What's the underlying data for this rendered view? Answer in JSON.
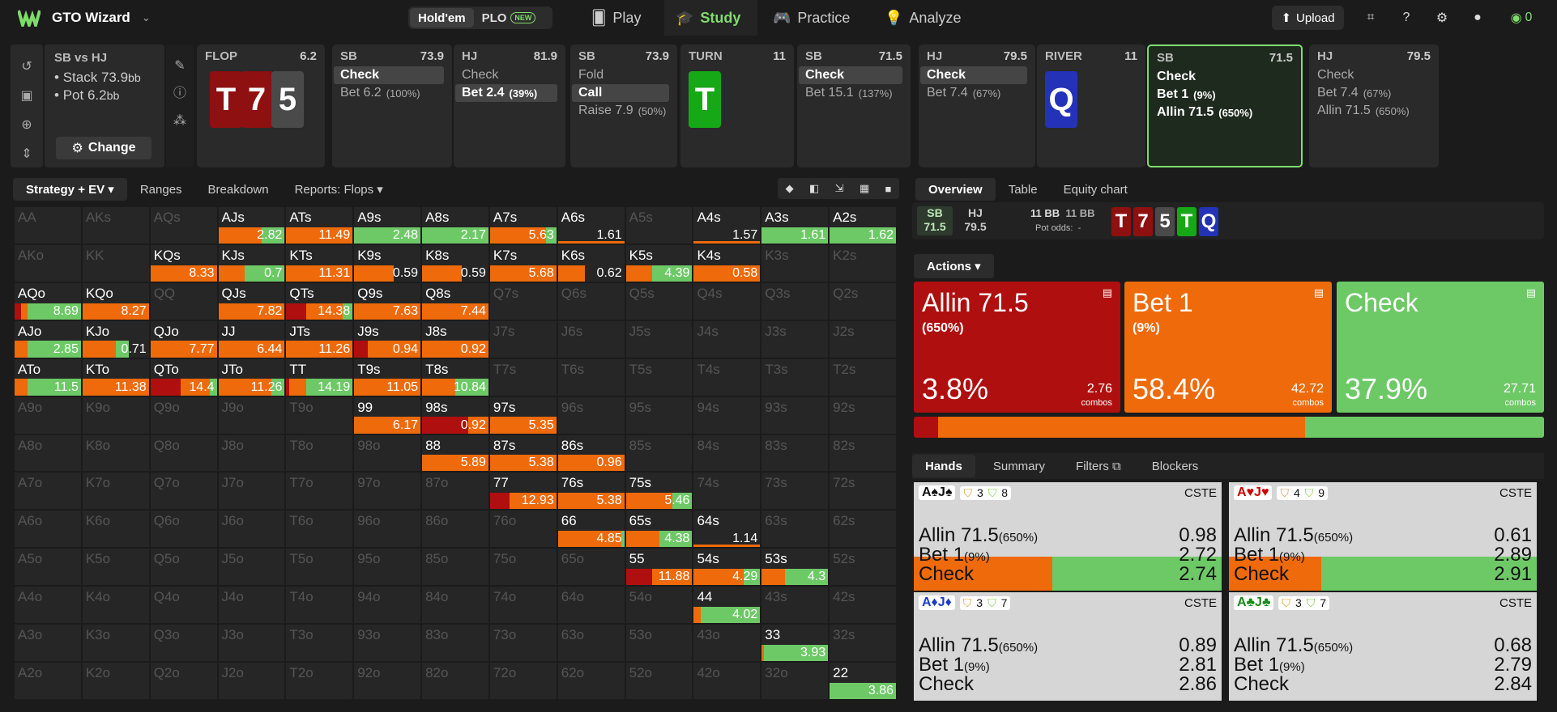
{
  "app": {
    "name": "GTO Wizard",
    "game_tabs": [
      "Hold'em",
      "PLO"
    ],
    "new_badge": "NEW",
    "nav": [
      "Play",
      "Study",
      "Practice",
      "Analyze"
    ],
    "upload": "Upload",
    "balance": "0"
  },
  "spot": {
    "title": "SB vs HJ",
    "stack_label": "Stack",
    "stack": "73.9",
    "pot_label": "Pot",
    "pot": "6.2",
    "unit": "bb",
    "change": "Change"
  },
  "tree": [
    {
      "h": "FLOP",
      "v": "6.2",
      "cards": [
        "T",
        "7",
        "5"
      ]
    },
    {
      "h": "SB",
      "v": "73.9",
      "acts": [
        [
          "Check",
          "",
          1
        ],
        [
          "Bet 6.2",
          "(100%)",
          0
        ]
      ]
    },
    {
      "h": "HJ",
      "v": "81.9",
      "acts": [
        [
          "Check",
          "",
          0
        ],
        [
          "Bet 2.4",
          "(39%)",
          1
        ]
      ]
    },
    {
      "h": "SB",
      "v": "73.9",
      "acts": [
        [
          "Fold",
          "",
          0
        ],
        [
          "Call",
          "",
          1
        ],
        [
          "Raise 7.9",
          "(50%)",
          0
        ]
      ]
    },
    {
      "h": "TURN",
      "v": "11",
      "cards": [
        "T"
      ]
    },
    {
      "h": "SB",
      "v": "71.5",
      "acts": [
        [
          "Check",
          "",
          1
        ],
        [
          "Bet 15.1",
          "(137%)",
          0
        ]
      ]
    },
    {
      "h": "HJ",
      "v": "79.5",
      "acts": [
        [
          "Check",
          "",
          1
        ],
        [
          "Bet 7.4",
          "(67%)",
          0
        ]
      ]
    },
    {
      "h": "RIVER",
      "v": "11",
      "cards": [
        "Q"
      ]
    },
    {
      "h": "SB",
      "v": "71.5",
      "acts": [
        [
          "Check",
          "",
          0
        ],
        [
          "Bet 1",
          "(9%)",
          0
        ],
        [
          "Allin 71.5",
          "(650%)",
          0
        ]
      ]
    },
    {
      "h": "HJ",
      "v": "79.5",
      "acts": [
        [
          "Check",
          "",
          0
        ],
        [
          "Bet 7.4",
          "(67%)",
          0
        ],
        [
          "Allin 71.5",
          "(650%)",
          0
        ]
      ]
    }
  ],
  "left_tabs": [
    "Strategy + EV",
    "Ranges",
    "Breakdown",
    "Reports: Flops"
  ],
  "right_tabs": [
    "Overview",
    "Table",
    "Equity chart"
  ],
  "players": {
    "sb": "SB",
    "sb_v": "71.5",
    "hj": "HJ",
    "hj_v": "79.5",
    "bb1": "11 BB",
    "bb2": "11 BB",
    "odds": "Pot odds:",
    "odds_v": "-"
  },
  "board": [
    "T",
    "7",
    "5",
    "T",
    "Q"
  ],
  "actions_label": "Actions",
  "actions": [
    {
      "name": "Allin 71.5",
      "sub": "(650%)",
      "pct": "3.8%",
      "combos": "2.76",
      "combos_label": "combos",
      "color": "#b00f0f"
    },
    {
      "name": "Bet 1",
      "sub": "(9%)",
      "pct": "58.4%",
      "combos": "42.72",
      "combos_label": "combos",
      "color": "#ee6a0a"
    },
    {
      "name": "Check",
      "sub": "",
      "pct": "37.9%",
      "combos": "27.71",
      "combos_label": "combos",
      "color": "#6dc966"
    }
  ],
  "freq": [
    3.8,
    58.4,
    37.9
  ],
  "hands_tabs": [
    "Hands",
    "Summary",
    "Filters",
    "Blockers"
  ],
  "hands": [
    {
      "card": "A♠J♠",
      "b1": "3",
      "b2": "8",
      "cste": "CSTE",
      "rows": [
        [
          "Allin 71.5",
          "(650%)",
          "0.98"
        ],
        [
          "Bet 1",
          "(9%)",
          "2.72"
        ],
        [
          "Check",
          "",
          "2.74"
        ]
      ],
      "fill": [
        0,
        45,
        55
      ]
    },
    {
      "card": "A♥J♥",
      "b1": "4",
      "b2": "9",
      "cste": "CSTE",
      "rows": [
        [
          "Allin 71.5",
          "(650%)",
          "0.61"
        ],
        [
          "Bet 1",
          "(9%)",
          "2.89"
        ],
        [
          "Check",
          "",
          "2.91"
        ]
      ],
      "fill": [
        0,
        30,
        70
      ]
    },
    {
      "card": "A♦J♦",
      "b1": "3",
      "b2": "7",
      "cste": "CSTE",
      "rows": [
        [
          "Allin 71.5",
          "(650%)",
          "0.89"
        ],
        [
          "Bet 1",
          "(9%)",
          "2.81"
        ],
        [
          "Check",
          "",
          "2.86"
        ]
      ],
      "fill": [
        0,
        0,
        0
      ]
    },
    {
      "card": "A♣J♣",
      "b1": "3",
      "b2": "7",
      "cste": "CSTE",
      "rows": [
        [
          "Allin 71.5",
          "(650%)",
          "0.68"
        ],
        [
          "Bet 1",
          "(9%)",
          "2.79"
        ],
        [
          "Check",
          "",
          "2.84"
        ]
      ],
      "fill": [
        0,
        0,
        0
      ]
    }
  ],
  "matrix": [
    [
      "AA",
      "",
      "",
      "",
      ""
    ],
    [
      "AKs",
      "",
      "",
      "",
      ""
    ],
    [
      "AQs",
      "",
      "",
      "",
      ""
    ],
    [
      "AJs",
      "2.82",
      "0",
      "65",
      "35"
    ],
    [
      "ATs",
      "11.49",
      "0",
      "100",
      "0"
    ],
    [
      "A9s",
      "2.48",
      "0",
      "0",
      "100"
    ],
    [
      "A8s",
      "2.17",
      "0",
      "0",
      "100"
    ],
    [
      "A7s",
      "5.63",
      "0",
      "85",
      "15"
    ],
    [
      "A6s",
      "1.61",
      "0",
      "0",
      "0"
    ],
    [
      "A5s",
      "",
      "",
      "",
      ""
    ],
    [
      "A4s",
      "1.57",
      "0",
      "0",
      "0"
    ],
    [
      "A3s",
      "1.61",
      "0",
      "0",
      "100"
    ],
    [
      "A2s",
      "1.62",
      "0",
      "0",
      "100"
    ],
    [
      "AKo",
      "",
      "",
      "",
      ""
    ],
    [
      "KK",
      "",
      "",
      "",
      ""
    ],
    [
      "KQs",
      "8.33",
      "0",
      "100",
      "0"
    ],
    [
      "KJs",
      "0.7",
      "0",
      "40",
      "60"
    ],
    [
      "KTs",
      "11.31",
      "0",
      "100",
      "0"
    ],
    [
      "K9s",
      "0.59",
      "0",
      "60",
      "0"
    ],
    [
      "K8s",
      "0.59",
      "0",
      "60",
      "0"
    ],
    [
      "K7s",
      "5.68",
      "0",
      "100",
      "0"
    ],
    [
      "K6s",
      "0.62",
      "0",
      "40",
      "0"
    ],
    [
      "K5s",
      "4.39",
      "0",
      "40",
      "60"
    ],
    [
      "K4s",
      "0.58",
      "0",
      "100",
      "0"
    ],
    [
      "K3s",
      "",
      "",
      "",
      ""
    ],
    [
      "K2s",
      "",
      "",
      "",
      ""
    ],
    [
      "AQo",
      "8.69",
      "10",
      "10",
      "80"
    ],
    [
      "KQo",
      "8.27",
      "0",
      "100",
      "0"
    ],
    [
      "QQ",
      "",
      "",
      "",
      ""
    ],
    [
      "QJs",
      "7.82",
      "0",
      "100",
      "0"
    ],
    [
      "QTs",
      "14.38",
      "30",
      "55",
      "15"
    ],
    [
      "Q9s",
      "7.63",
      "0",
      "100",
      "0"
    ],
    [
      "Q8s",
      "7.44",
      "0",
      "100",
      "0"
    ],
    [
      "Q7s",
      "",
      "",
      "",
      ""
    ],
    [
      "Q6s",
      "",
      "",
      "",
      ""
    ],
    [
      "Q5s",
      "",
      "",
      "",
      ""
    ],
    [
      "Q4s",
      "",
      "",
      "",
      ""
    ],
    [
      "Q3s",
      "",
      "",
      "",
      ""
    ],
    [
      "Q2s",
      "",
      "",
      "",
      ""
    ],
    [
      "AJo",
      "2.85",
      "0",
      "20",
      "80"
    ],
    [
      "KJo",
      "0.71",
      "0",
      "50",
      "20"
    ],
    [
      "QJo",
      "7.77",
      "0",
      "100",
      "0"
    ],
    [
      "JJ",
      "6.44",
      "0",
      "100",
      "0"
    ],
    [
      "JTs",
      "11.26",
      "0",
      "100",
      "0"
    ],
    [
      "J9s",
      "0.94",
      "20",
      "80",
      "0"
    ],
    [
      "J8s",
      "0.92",
      "0",
      "100",
      "0"
    ],
    [
      "J7s",
      "",
      "",
      "",
      ""
    ],
    [
      "J6s",
      "",
      "",
      "",
      ""
    ],
    [
      "J5s",
      "",
      "",
      "",
      ""
    ],
    [
      "J4s",
      "",
      "",
      "",
      ""
    ],
    [
      "J3s",
      "",
      "",
      "",
      ""
    ],
    [
      "J2s",
      "",
      "",
      "",
      ""
    ],
    [
      "ATo",
      "11.5",
      "0",
      "20",
      "80"
    ],
    [
      "KTo",
      "11.38",
      "0",
      "100",
      "0"
    ],
    [
      "QTo",
      "14.4",
      "45",
      "45",
      "10"
    ],
    [
      "JTo",
      "11.26",
      "0",
      "80",
      "20"
    ],
    [
      "TT",
      "14.19",
      "5",
      "25",
      "70"
    ],
    [
      "T9s",
      "11.05",
      "0",
      "100",
      "0"
    ],
    [
      "T8s",
      "10.84",
      "0",
      "50",
      "50"
    ],
    [
      "T7s",
      "",
      "",
      "",
      ""
    ],
    [
      "T6s",
      "",
      "",
      "",
      ""
    ],
    [
      "T5s",
      "",
      "",
      "",
      ""
    ],
    [
      "T4s",
      "",
      "",
      "",
      ""
    ],
    [
      "T3s",
      "",
      "",
      "",
      ""
    ],
    [
      "T2s",
      "",
      "",
      "",
      ""
    ],
    [
      "A9o",
      "",
      "",
      "",
      ""
    ],
    [
      "K9o",
      "",
      "",
      "",
      ""
    ],
    [
      "Q9o",
      "",
      "",
      "",
      ""
    ],
    [
      "J9o",
      "",
      "",
      "",
      ""
    ],
    [
      "T9o",
      "",
      "",
      "",
      ""
    ],
    [
      "99",
      "6.17",
      "0",
      "100",
      "0"
    ],
    [
      "98s",
      "0.92",
      "70",
      "30",
      "0"
    ],
    [
      "97s",
      "5.35",
      "0",
      "100",
      "0"
    ],
    [
      "96s",
      "",
      "",
      "",
      ""
    ],
    [
      "95s",
      "",
      "",
      "",
      ""
    ],
    [
      "94s",
      "",
      "",
      "",
      ""
    ],
    [
      "93s",
      "",
      "",
      "",
      ""
    ],
    [
      "92s",
      "",
      "",
      "",
      ""
    ],
    [
      "A8o",
      "",
      "",
      "",
      ""
    ],
    [
      "K8o",
      "",
      "",
      "",
      ""
    ],
    [
      "Q8o",
      "",
      "",
      "",
      ""
    ],
    [
      "J8o",
      "",
      "",
      "",
      ""
    ],
    [
      "T8o",
      "",
      "",
      "",
      ""
    ],
    [
      "98o",
      "",
      "",
      "",
      ""
    ],
    [
      "88",
      "5.89",
      "0",
      "100",
      "0"
    ],
    [
      "87s",
      "5.38",
      "0",
      "100",
      "0"
    ],
    [
      "86s",
      "0.96",
      "0",
      "100",
      "0"
    ],
    [
      "85s",
      "",
      "",
      "",
      ""
    ],
    [
      "84s",
      "",
      "",
      "",
      ""
    ],
    [
      "83s",
      "",
      "",
      "",
      ""
    ],
    [
      "82s",
      "",
      "",
      "",
      ""
    ],
    [
      "A7o",
      "",
      "",
      "",
      ""
    ],
    [
      "K7o",
      "",
      "",
      "",
      ""
    ],
    [
      "Q7o",
      "",
      "",
      "",
      ""
    ],
    [
      "J7o",
      "",
      "",
      "",
      ""
    ],
    [
      "T7o",
      "",
      "",
      "",
      ""
    ],
    [
      "97o",
      "",
      "",
      "",
      ""
    ],
    [
      "87o",
      "",
      "",
      "",
      ""
    ],
    [
      "77",
      "12.93",
      "30",
      "70",
      "0"
    ],
    [
      "76s",
      "5.38",
      "0",
      "100",
      "0"
    ],
    [
      "75s",
      "5.46",
      "0",
      "70",
      "30"
    ],
    [
      "74s",
      "",
      "",
      "",
      ""
    ],
    [
      "73s",
      "",
      "",
      "",
      ""
    ],
    [
      "72s",
      "",
      "",
      "",
      ""
    ],
    [
      "A6o",
      "",
      "",
      "",
      ""
    ],
    [
      "K6o",
      "",
      "",
      "",
      ""
    ],
    [
      "Q6o",
      "",
      "",
      "",
      ""
    ],
    [
      "J6o",
      "",
      "",
      "",
      ""
    ],
    [
      "T6o",
      "",
      "",
      "",
      ""
    ],
    [
      "96o",
      "",
      "",
      "",
      ""
    ],
    [
      "86o",
      "",
      "",
      "",
      ""
    ],
    [
      "76o",
      "",
      "",
      "",
      ""
    ],
    [
      "66",
      "4.85",
      "0",
      "95",
      "5"
    ],
    [
      "65s",
      "4.38",
      "0",
      "50",
      "50"
    ],
    [
      "64s",
      "1.14",
      "0",
      "0",
      "0"
    ],
    [
      "63s",
      "",
      "",
      "",
      ""
    ],
    [
      "62s",
      "",
      "",
      "",
      ""
    ],
    [
      "A5o",
      "",
      "",
      "",
      ""
    ],
    [
      "K5o",
      "",
      "",
      "",
      ""
    ],
    [
      "Q5o",
      "",
      "",
      "",
      ""
    ],
    [
      "J5o",
      "",
      "",
      "",
      ""
    ],
    [
      "T5o",
      "",
      "",
      "",
      ""
    ],
    [
      "95o",
      "",
      "",
      "",
      ""
    ],
    [
      "85o",
      "",
      "",
      "",
      ""
    ],
    [
      "75o",
      "",
      "",
      "",
      ""
    ],
    [
      "65o",
      "",
      "",
      "",
      ""
    ],
    [
      "55",
      "11.88",
      "40",
      "60",
      "0"
    ],
    [
      "54s",
      "4.29",
      "0",
      "75",
      "25"
    ],
    [
      "53s",
      "4.3",
      "0",
      "35",
      "65"
    ],
    [
      "52s",
      "",
      "",
      "",
      ""
    ],
    [
      "A4o",
      "",
      "",
      "",
      ""
    ],
    [
      "K4o",
      "",
      "",
      "",
      ""
    ],
    [
      "Q4o",
      "",
      "",
      "",
      ""
    ],
    [
      "J4o",
      "",
      "",
      "",
      ""
    ],
    [
      "T4o",
      "",
      "",
      "",
      ""
    ],
    [
      "94o",
      "",
      "",
      "",
      ""
    ],
    [
      "84o",
      "",
      "",
      "",
      ""
    ],
    [
      "74o",
      "",
      "",
      "",
      ""
    ],
    [
      "64o",
      "",
      "",
      "",
      ""
    ],
    [
      "54o",
      "",
      "",
      "",
      ""
    ],
    [
      "44",
      "4.02",
      "0",
      "10",
      "90"
    ],
    [
      "43s",
      "",
      "",
      "",
      ""
    ],
    [
      "42s",
      "",
      "",
      "",
      ""
    ],
    [
      "A3o",
      "",
      "",
      "",
      ""
    ],
    [
      "K3o",
      "",
      "",
      "",
      ""
    ],
    [
      "Q3o",
      "",
      "",
      "",
      ""
    ],
    [
      "J3o",
      "",
      "",
      "",
      ""
    ],
    [
      "T3o",
      "",
      "",
      "",
      ""
    ],
    [
      "93o",
      "",
      "",
      "",
      ""
    ],
    [
      "83o",
      "",
      "",
      "",
      ""
    ],
    [
      "73o",
      "",
      "",
      "",
      ""
    ],
    [
      "63o",
      "",
      "",
      "",
      ""
    ],
    [
      "53o",
      "",
      "",
      "",
      ""
    ],
    [
      "43o",
      "",
      "",
      "",
      ""
    ],
    [
      "33",
      "3.93",
      "0",
      "3",
      "97"
    ],
    [
      "32s",
      "",
      "",
      "",
      ""
    ],
    [
      "A2o",
      "",
      "",
      "",
      ""
    ],
    [
      "K2o",
      "",
      "",
      "",
      ""
    ],
    [
      "Q2o",
      "",
      "",
      "",
      ""
    ],
    [
      "J2o",
      "",
      "",
      "",
      ""
    ],
    [
      "T2o",
      "",
      "",
      "",
      ""
    ],
    [
      "92o",
      "",
      "",
      "",
      ""
    ],
    [
      "82o",
      "",
      "",
      "",
      ""
    ],
    [
      "72o",
      "",
      "",
      "",
      ""
    ],
    [
      "62o",
      "",
      "",
      "",
      ""
    ],
    [
      "52o",
      "",
      "",
      "",
      ""
    ],
    [
      "42o",
      "",
      "",
      "",
      ""
    ],
    [
      "32o",
      "",
      "",
      "",
      ""
    ],
    [
      "22",
      "3.86",
      "0",
      "0",
      "100"
    ]
  ],
  "colors": {
    "allin": "#b00f0f",
    "bet": "#ee6a0a",
    "check": "#6dc966",
    "accent": "#7fdc6c"
  }
}
